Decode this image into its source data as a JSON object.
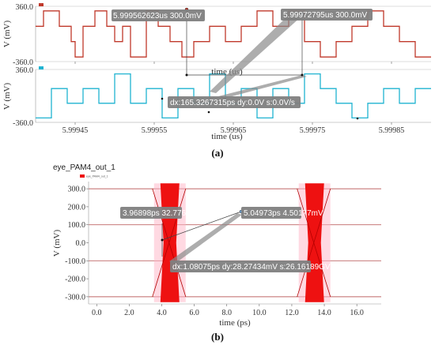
{
  "chart_data": [
    {
      "type": "line",
      "panel_label": "(a)",
      "xlabel": "time (us)",
      "x_ticks": [
        "5.99945",
        "5.99955",
        "5.99965",
        "5.99975",
        "5.99985"
      ],
      "xlim": [
        5.9994,
        5.9999
      ],
      "legend_placement": "top-left",
      "series": [
        {
          "name": "",
          "color": "#c0392b",
          "ylabel": "V (mV)",
          "y_ticks": [
            "360.0",
            "-360.0"
          ],
          "ylim": [
            -360,
            360
          ],
          "x": [
            5.9994,
            5.99941,
            5.99941,
            5.99943,
            5.99943,
            5.999445,
            5.999445,
            5.99945,
            5.99945,
            5.99946,
            5.99946,
            5.999475,
            5.999475,
            5.99949,
            5.99949,
            5.9995,
            5.9995,
            5.99951,
            5.99951,
            5.99952,
            5.99952,
            5.99954,
            5.99954,
            5.999555,
            5.999555,
            5.99957,
            5.99957,
            5.999585,
            5.999585,
            5.9996,
            5.9996,
            5.99962,
            5.99962,
            5.99964,
            5.99964,
            5.99966,
            5.99966,
            5.99968,
            5.99968,
            5.9997,
            5.9997,
            5.99972,
            5.99972,
            5.99974,
            5.99974,
            5.99976,
            5.99976,
            5.99978,
            5.99978,
            5.9998,
            5.9998,
            5.99982,
            5.99982,
            5.99984,
            5.99984,
            5.99986,
            5.99986,
            5.99988,
            5.99988,
            5.9999
          ],
          "y": [
            100,
            100,
            300,
            300,
            100,
            100,
            -100,
            -100,
            -300,
            -300,
            100,
            100,
            300,
            300,
            100,
            100,
            -100,
            -100,
            100,
            100,
            -300,
            -300,
            300,
            300,
            100,
            100,
            -100,
            -100,
            -300,
            -300,
            -100,
            -100,
            100,
            100,
            -100,
            -100,
            100,
            100,
            300,
            300,
            100,
            100,
            300,
            300,
            -100,
            -100,
            -300,
            -300,
            -100,
            -100,
            100,
            100,
            300,
            300,
            100,
            100,
            -100,
            -100,
            -300,
            -300
          ]
        },
        {
          "name": "",
          "color": "#1fb3d1",
          "ylabel": "V (mV)",
          "y_ticks": [
            "360.0",
            "-360.0"
          ],
          "ylim": [
            -360,
            360
          ],
          "x": [
            5.9994,
            5.99942,
            5.99942,
            5.99944,
            5.99944,
            5.99946,
            5.99946,
            5.99948,
            5.99948,
            5.9995,
            5.9995,
            5.99952,
            5.99952,
            5.99954,
            5.99954,
            5.99956,
            5.99956,
            5.99958,
            5.99958,
            5.9996,
            5.9996,
            5.99962,
            5.99962,
            5.99964,
            5.99964,
            5.99966,
            5.99966,
            5.99968,
            5.99968,
            5.9997,
            5.9997,
            5.99972,
            5.99972,
            5.99974,
            5.99974,
            5.99976,
            5.99976,
            5.99978,
            5.99978,
            5.9998,
            5.9998,
            5.99982,
            5.99982,
            5.99984,
            5.99984,
            5.99986,
            5.99986,
            5.99988,
            5.99988,
            5.9999
          ],
          "y": [
            -300,
            -300,
            100,
            100,
            -100,
            -100,
            100,
            100,
            -100,
            -100,
            300,
            300,
            -100,
            -100,
            100,
            100,
            -300,
            -300,
            100,
            100,
            -100,
            -100,
            300,
            300,
            -100,
            -100,
            100,
            100,
            -300,
            -300,
            100,
            100,
            -100,
            -100,
            300,
            300,
            100,
            100,
            -100,
            -100,
            -300,
            -300,
            -100,
            -100,
            100,
            100,
            -100,
            -100,
            100,
            100
          ]
        }
      ],
      "annotations": [
        "5.999562623us 300.0mV",
        "5.99972795us 300.0mV",
        "dx:165.3267315ps dy:0.0V s:0.0V/s"
      ]
    },
    {
      "type": "line",
      "panel_label": "(b)",
      "title": "eye_PAM4_out_1",
      "xlabel": "time (ps)",
      "ylabel": "V (mV)",
      "x_ticks": [
        "0.0",
        "2.0",
        "4.0",
        "6.0",
        "8.0",
        "10.0",
        "12.0",
        "14.0",
        "16.0"
      ],
      "y_ticks": [
        "300.0",
        "200.0",
        "100.0",
        "0.0",
        "-100.0",
        "-200.0",
        "-300.0"
      ],
      "xlim": [
        -0.5,
        17.5
      ],
      "ylim": [
        -340,
        340
      ],
      "legend_placement": "top-left",
      "color": "#ee1111",
      "levels_mV": [
        300,
        100,
        -100,
        -300
      ],
      "crossings_ps": [
        4.5,
        13.4
      ],
      "annotations": [
        "3.96898ps 32.7761mV",
        "5.04973ps 4.50177mV",
        "dx:1.08075ps dy:28.27434mV s:26.16189GV/s"
      ]
    }
  ]
}
